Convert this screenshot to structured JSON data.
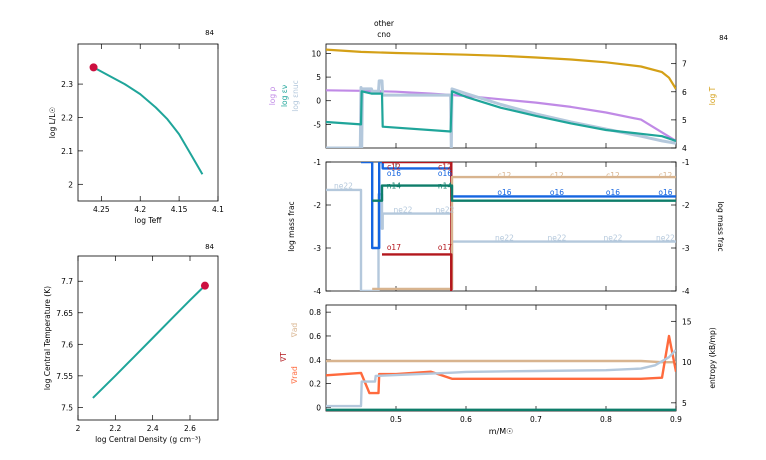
{
  "model_number": "84",
  "colors": {
    "teal": "#1fa59a",
    "gold": "#d4a017",
    "lavender": "#c08ae6",
    "lightblue": "#b4c8dc",
    "blue": "#1565e0",
    "green": "#0e7d6a",
    "red": "#b3171d",
    "tan": "#d8b48f",
    "orange": "#ff6a3d",
    "marker": "#cc1040"
  },
  "chart_data": [
    {
      "type": "line",
      "title": "84",
      "xlabel": "log Teff",
      "ylabel": "log L/L☉",
      "x_reversed": true,
      "xlim": [
        4.28,
        4.1
      ],
      "ylim": [
        1.95,
        2.42
      ],
      "xticks": [
        4.25,
        4.2,
        4.15,
        4.1
      ],
      "xtick_labels": [
        "4.25",
        "4.2",
        "4.15",
        "4.1"
      ],
      "yticks": [
        2,
        2.1,
        2.2,
        2.3
      ],
      "ytick_labels": [
        "2",
        "2.1",
        "2.2",
        "2.3"
      ],
      "series": [
        {
          "x": [
            4.26,
            4.24,
            4.22,
            4.2,
            4.18,
            4.165,
            4.15,
            4.135,
            4.12
          ],
          "y": [
            2.35,
            2.325,
            2.3,
            2.27,
            2.23,
            2.195,
            2.15,
            2.09,
            2.03
          ]
        }
      ],
      "marker": {
        "x": 4.26,
        "y": 2.35
      }
    },
    {
      "type": "line",
      "title": "84",
      "xlabel": "log Central Density (g cm⁻³)",
      "ylabel": "log Central Temperature (K)",
      "xlim": [
        2.0,
        2.75
      ],
      "ylim": [
        7.48,
        7.74
      ],
      "xticks": [
        2,
        2.2,
        2.4,
        2.6
      ],
      "xtick_labels": [
        "2",
        "2.2",
        "2.4",
        "2.6"
      ],
      "yticks": [
        7.5,
        7.55,
        7.6,
        7.65,
        7.7
      ],
      "ytick_labels": [
        "7.5",
        "7.55",
        "7.6",
        "7.65",
        "7.7"
      ],
      "series": [
        {
          "x": [
            2.08,
            2.2,
            2.3,
            2.4,
            2.5,
            2.6,
            2.68
          ],
          "y": [
            7.515,
            7.55,
            7.58,
            7.61,
            7.64,
            7.67,
            7.693
          ]
        }
      ],
      "marker": {
        "x": 2.68,
        "y": 7.693
      }
    },
    {
      "type": "line",
      "title": "84",
      "xlim": [
        0.4,
        0.9
      ],
      "ylabel_left": [
        "log ρ",
        "log εν",
        "log εnuc"
      ],
      "ylabel_right": "log T",
      "ylim": [
        -10,
        12
      ],
      "yticks": [
        -5,
        0,
        5,
        10
      ],
      "ytick_labels": [
        "-5",
        "0",
        "5",
        "10"
      ],
      "ylim_right": [
        4,
        7.7
      ],
      "yticks_right": [
        4,
        5,
        6,
        7
      ],
      "ytick_labels_right": [
        "4",
        "5",
        "6",
        "7"
      ],
      "annotations": [
        {
          "text": "other",
          "x": 0.45
        },
        {
          "text": "cno",
          "x": 0.45
        }
      ],
      "series": [
        {
          "name": "log T",
          "axis": "right",
          "color": "gold",
          "x": [
            0.4,
            0.45,
            0.5,
            0.55,
            0.6,
            0.65,
            0.7,
            0.75,
            0.8,
            0.85,
            0.88,
            0.89,
            0.9
          ],
          "y": [
            7.5,
            7.42,
            7.38,
            7.35,
            7.32,
            7.28,
            7.22,
            7.15,
            7.05,
            6.9,
            6.7,
            6.5,
            6.1
          ]
        },
        {
          "name": "log ρ",
          "axis": "left",
          "color": "lavender",
          "x": [
            0.4,
            0.45,
            0.5,
            0.55,
            0.6,
            0.65,
            0.7,
            0.75,
            0.8,
            0.85,
            0.9
          ],
          "y": [
            2.2,
            2.1,
            1.9,
            1.5,
            1.0,
            0.3,
            -0.4,
            -1.3,
            -2.5,
            -4.0,
            -8.5
          ]
        },
        {
          "name": "log εnuc",
          "axis": "left",
          "color": "lightblue",
          "x": [
            0.4,
            0.449,
            0.45,
            0.451,
            0.452,
            0.465,
            0.466,
            0.475,
            0.476,
            0.48,
            0.481,
            0.578,
            0.579,
            0.58,
            0.6,
            0.65,
            0.7,
            0.75,
            0.8,
            0.85,
            0.88,
            0.9
          ],
          "y": [
            -10,
            -10,
            2.8,
            -10,
            2.5,
            2.5,
            2.0,
            2.0,
            4.2,
            4.2,
            1.2,
            1.2,
            -10,
            2.5,
            1.5,
            -0.8,
            -2.8,
            -4.5,
            -6.0,
            -7.5,
            -8.5,
            -9.0
          ]
        },
        {
          "name": "log εν",
          "axis": "left",
          "color": "teal",
          "x": [
            0.4,
            0.45,
            0.451,
            0.465,
            0.48,
            0.481,
            0.578,
            0.58,
            0.6,
            0.65,
            0.7,
            0.75,
            0.8,
            0.85,
            0.88,
            0.9
          ],
          "y": [
            -4.5,
            -5.0,
            2.0,
            1.5,
            1.5,
            -5.5,
            -6.5,
            2.0,
            0.8,
            -1.5,
            -3.2,
            -4.8,
            -6.2,
            -7.0,
            -7.5,
            -8.5
          ]
        }
      ]
    },
    {
      "type": "line",
      "title": "",
      "ylabel": "log mass frac",
      "ylabel_right": "log mass frac",
      "xlim": [
        0.4,
        0.9
      ],
      "ylim": [
        -4,
        -1
      ],
      "yticks": [
        -4,
        -3,
        -2,
        -1
      ],
      "ytick_labels": [
        "-4",
        "-3",
        "-2",
        "-1"
      ],
      "labels": [
        {
          "text": "ne22",
          "x": 0.425,
          "y": -1.55,
          "color": "lightblue"
        },
        {
          "text": "c12",
          "x": 0.497,
          "y": -1.1,
          "color": "red"
        },
        {
          "text": "o16",
          "x": 0.497,
          "y": -1.25,
          "color": "blue"
        },
        {
          "text": "n14",
          "x": 0.497,
          "y": -1.55,
          "color": "green"
        },
        {
          "text": "ne22",
          "x": 0.51,
          "y": -2.1,
          "color": "lightblue"
        },
        {
          "text": "o17",
          "x": 0.497,
          "y": -2.98,
          "color": "red"
        },
        {
          "text": "c12",
          "x": 0.57,
          "y": -1.1,
          "color": "red"
        },
        {
          "text": "o16",
          "x": 0.57,
          "y": -1.25,
          "color": "blue"
        },
        {
          "text": "n14",
          "x": 0.57,
          "y": -1.55,
          "color": "green"
        },
        {
          "text": "ne22",
          "x": 0.57,
          "y": -2.1,
          "color": "lightblue"
        },
        {
          "text": "o17",
          "x": 0.57,
          "y": -2.98,
          "color": "red"
        },
        {
          "text": "c12",
          "x": 0.655,
          "y": -1.3,
          "color": "tan"
        },
        {
          "text": "o16",
          "x": 0.655,
          "y": -1.7,
          "color": "blue"
        },
        {
          "text": "ne22",
          "x": 0.655,
          "y": -2.75,
          "color": "lightblue"
        },
        {
          "text": "c12",
          "x": 0.73,
          "y": -1.3,
          "color": "tan"
        },
        {
          "text": "o16",
          "x": 0.73,
          "y": -1.7,
          "color": "blue"
        },
        {
          "text": "ne22",
          "x": 0.73,
          "y": -2.75,
          "color": "lightblue"
        },
        {
          "text": "c12",
          "x": 0.81,
          "y": -1.3,
          "color": "tan"
        },
        {
          "text": "o16",
          "x": 0.81,
          "y": -1.7,
          "color": "blue"
        },
        {
          "text": "ne22",
          "x": 0.81,
          "y": -2.75,
          "color": "lightblue"
        },
        {
          "text": "c12",
          "x": 0.885,
          "y": -1.3,
          "color": "tan"
        },
        {
          "text": "o16",
          "x": 0.885,
          "y": -1.7,
          "color": "blue"
        },
        {
          "text": "ne22",
          "x": 0.885,
          "y": -2.75,
          "color": "lightblue"
        }
      ],
      "series": [
        {
          "name": "ne22",
          "color": "lightblue",
          "x": [
            0.4,
            0.449,
            0.45,
            0.465,
            0.475,
            0.476,
            0.48,
            0.481,
            0.578,
            0.579,
            0.58,
            0.9
          ],
          "y": [
            -1.65,
            -1.65,
            -4,
            -4,
            -1.75,
            -1.75,
            -2.55,
            -2.2,
            -2.2,
            -4,
            -2.85,
            -2.85
          ]
        },
        {
          "name": "o16",
          "color": "blue",
          "x": [
            0.45,
            0.451,
            0.465,
            0.466,
            0.475,
            0.476,
            0.48,
            0.481,
            0.578,
            0.579,
            0.58,
            0.9
          ],
          "y": [
            -1.0,
            -1.0,
            -1.0,
            -3.0,
            -3.0,
            -1.0,
            -1.0,
            -1.15,
            -1.15,
            -1.8,
            -1.8,
            -1.8
          ]
        },
        {
          "name": "c12",
          "color": "red",
          "x": [
            0.48,
            0.481,
            0.578,
            0.579
          ],
          "y": [
            -1.0,
            -1.0,
            -1.0,
            -4.0
          ]
        },
        {
          "name": "c12",
          "color": "tan",
          "x": [
            0.466,
            0.475,
            0.58,
            0.9
          ],
          "y": [
            -3.95,
            -3.95,
            -1.35,
            -1.35
          ]
        },
        {
          "name": "n14",
          "color": "green",
          "x": [
            0.466,
            0.476,
            0.48,
            0.481,
            0.578,
            0.58,
            0.9
          ],
          "y": [
            -1.9,
            -1.9,
            -1.55,
            -1.55,
            -1.55,
            -1.9,
            -1.9
          ]
        },
        {
          "name": "o17",
          "color": "red",
          "x": [
            0.48,
            0.481,
            0.578,
            0.579
          ],
          "y": [
            -3.15,
            -3.15,
            -3.15,
            -4.0
          ]
        }
      ]
    },
    {
      "type": "line",
      "xlabel": "m/M☉",
      "ylabel_left": [
        "∇rad",
        "∇T",
        "∇ad"
      ],
      "ylabel_right": "entropy (kB/mp)",
      "xlim": [
        0.4,
        0.9
      ],
      "ylim": [
        -0.03,
        0.86
      ],
      "yticks": [
        0,
        0.2,
        0.4,
        0.6,
        0.8
      ],
      "ytick_labels": [
        "0",
        "0.2",
        "0.4",
        "0.6",
        "0.8"
      ],
      "ylim_right": [
        4.0,
        17.0
      ],
      "yticks_right": [
        5,
        10,
        15
      ],
      "ytick_labels_right": [
        "5",
        "10",
        "15"
      ],
      "xticks": [
        0.5,
        0.6,
        0.7,
        0.8,
        0.9
      ],
      "xtick_labels": [
        "0.5",
        "0.6",
        "0.7",
        "0.8",
        "0.9"
      ],
      "series": [
        {
          "name": "∇ad",
          "color": "tan",
          "x": [
            0.4,
            0.5,
            0.6,
            0.7,
            0.8,
            0.85,
            0.88,
            0.9
          ],
          "y": [
            0.39,
            0.39,
            0.39,
            0.39,
            0.39,
            0.39,
            0.38,
            0.38
          ]
        },
        {
          "name": "∇rad",
          "color": "orange",
          "x": [
            0.4,
            0.45,
            0.46,
            0.462,
            0.475,
            0.476,
            0.5,
            0.55,
            0.58,
            0.6,
            0.7,
            0.8,
            0.85,
            0.88,
            0.89,
            0.9
          ],
          "y": [
            0.27,
            0.29,
            0.15,
            0.12,
            0.12,
            0.28,
            0.28,
            0.3,
            0.24,
            0.24,
            0.24,
            0.24,
            0.24,
            0.25,
            0.6,
            0.3
          ]
        },
        {
          "name": "∇T",
          "color": "green",
          "x": [
            0.4,
            0.9
          ],
          "y": [
            -0.02,
            -0.02
          ]
        },
        {
          "name": "entropy",
          "axis": "right",
          "color": "lightblue",
          "x": [
            0.4,
            0.45,
            0.451,
            0.47,
            0.471,
            0.58,
            0.6,
            0.7,
            0.8,
            0.85,
            0.87,
            0.89,
            0.9
          ],
          "y": [
            4.6,
            4.6,
            7.6,
            7.6,
            8.3,
            8.7,
            8.8,
            8.9,
            9.0,
            9.2,
            9.6,
            10.6,
            11.5
          ]
        }
      ]
    }
  ]
}
